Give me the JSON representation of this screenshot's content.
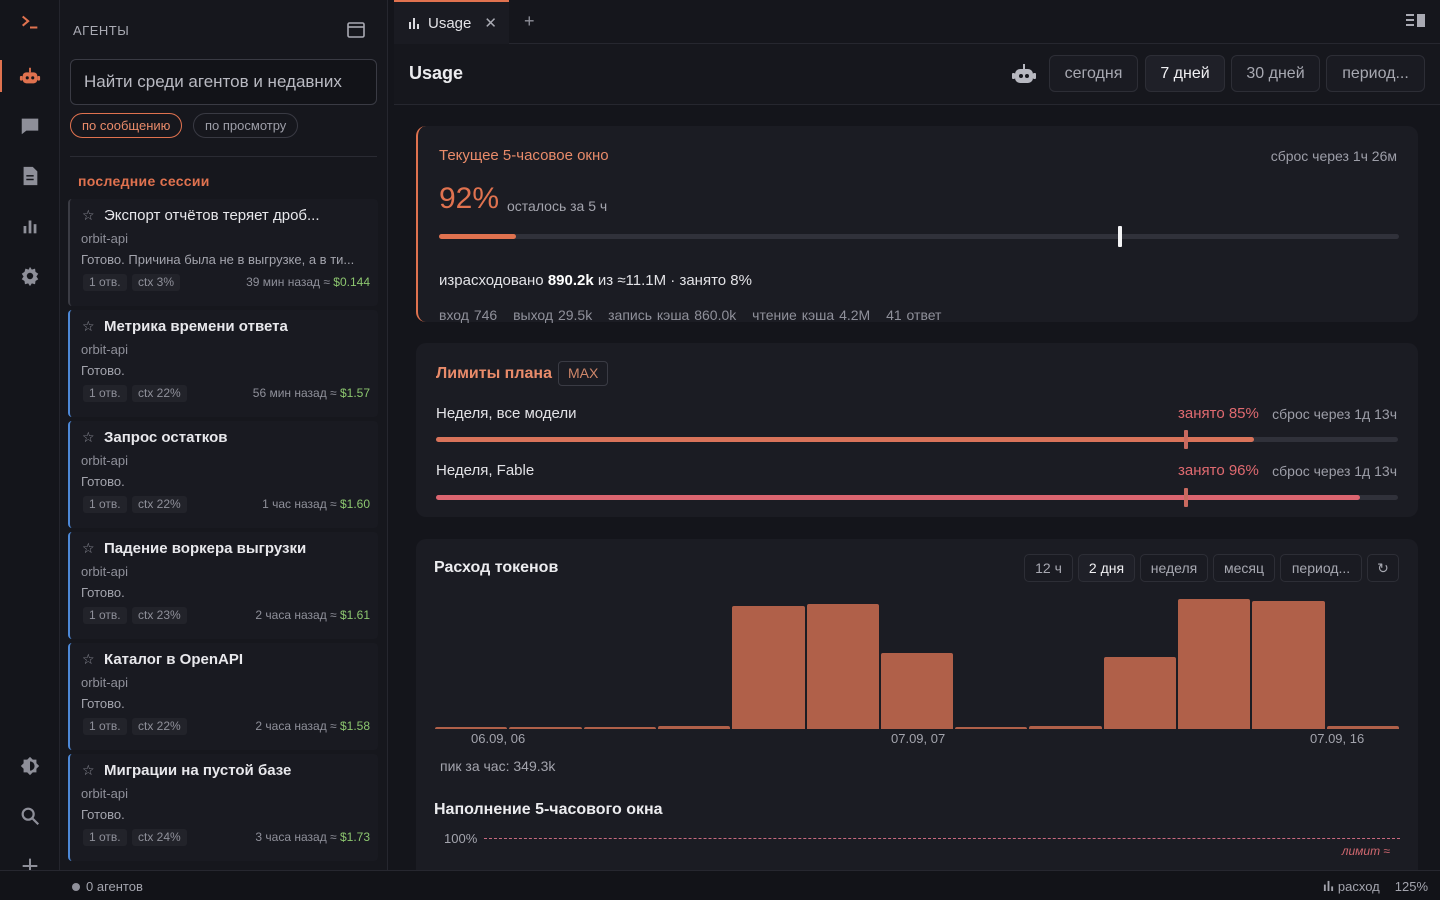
{
  "colors": {
    "accent": "#e0724f",
    "danger": "#e06a70",
    "cost": "#8cc66f",
    "bar": "#b06049",
    "recent": "#4d88d6"
  },
  "activity_bar": [
    "terminal-icon",
    "agents-icon",
    "chat-icon",
    "document-icon",
    "usage-chart-icon",
    "gear-icon",
    "theme-icon",
    "search-icon",
    "add-icon"
  ],
  "sidebar": {
    "title": "АГЕНТЫ",
    "search_placeholder": "Найти среди агентов и недавних",
    "filters": [
      "по сообщению",
      "по просмотру"
    ],
    "section": "последние сессии",
    "sessions": [
      {
        "name": "Экспорт отчётов теряет дроб...",
        "project": "orbit-api",
        "preview": "Готово. Причина была не в выгрузке, а в ти...",
        "replies": "1 отв.",
        "ctx": "ctx 3%",
        "time": "39 мин назад ≈",
        "cost": "$0.144"
      },
      {
        "name": "Метрика времени ответа",
        "project": "orbit-api",
        "preview": "Готово.",
        "replies": "1 отв.",
        "ctx": "ctx 22%",
        "time": "56 мин назад ≈",
        "cost": "$1.57"
      },
      {
        "name": "Запрос остатков",
        "project": "orbit-api",
        "preview": "Готово.",
        "replies": "1 отв.",
        "ctx": "ctx 22%",
        "time": "1 час назад ≈",
        "cost": "$1.60"
      },
      {
        "name": "Падение воркера выгрузки",
        "project": "orbit-api",
        "preview": "Готово.",
        "replies": "1 отв.",
        "ctx": "ctx 23%",
        "time": "2 часа назад ≈",
        "cost": "$1.61"
      },
      {
        "name": "Каталог в OpenAPI",
        "project": "orbit-api",
        "preview": "Готово.",
        "replies": "1 отв.",
        "ctx": "ctx 22%",
        "time": "2 часа назад ≈",
        "cost": "$1.58"
      },
      {
        "name": "Миграции на пустой базе",
        "project": "orbit-api",
        "preview": "Готово.",
        "replies": "1 отв.",
        "ctx": "ctx 24%",
        "time": "3 часа назад ≈",
        "cost": "$1.73"
      }
    ]
  },
  "tabs": {
    "active": "Usage",
    "close": "✕",
    "add": "+"
  },
  "header": {
    "title": "Usage",
    "ranges": [
      "сегодня",
      "7 дней",
      "30 дней",
      "период..."
    ],
    "selected_range": "7 дней"
  },
  "window": {
    "title": "Текущее 5-часовое окно",
    "reset": "сброс через 1ч 26м",
    "percent": "92%",
    "percent_sub": "осталось за 5 ч",
    "used_fraction": 0.08,
    "used_prefix": "израсходовано",
    "used_value": "890.2k",
    "used_suffix": "из ≈11.1M · занято 8%",
    "stats": [
      "вход 746",
      "выход 29.5k",
      "запись кэша 860.0k",
      "чтение кэша 4.2M",
      "41 ответ"
    ]
  },
  "limits": {
    "title": "Лимиты плана",
    "badge": "MAX",
    "items": [
      {
        "name": "Неделя, все модели",
        "pct_label": "занято 85%",
        "reset": "сброс через 1д 13ч",
        "fraction": 0.85
      },
      {
        "name": "Неделя, Fable",
        "pct_label": "занято 96%",
        "reset": "сброс через 1д 13ч",
        "fraction": 0.96
      }
    ]
  },
  "tokens": {
    "title": "Расход токенов",
    "ranges": [
      "12 ч",
      "2 дня",
      "неделя",
      "месяц",
      "период..."
    ],
    "selected_range": "2 дня",
    "refresh": "↻",
    "peak": "пик за час: 349.3k",
    "fill_title": "Наполнение 5-часового окна",
    "fill_pct": "100%",
    "limit_label": "лимит ≈"
  },
  "chart_data": {
    "type": "bar",
    "title": "Расход токенов",
    "x_ticks": [
      "06.09, 06",
      "07.09, 07",
      "07.09, 16"
    ],
    "values": [
      0.003,
      0.003,
      0.003,
      0.008,
      0.35,
      0.355,
      0.215,
      0.003,
      0.008,
      0.205,
      0.37,
      0.365,
      0.008
    ],
    "units": "M токенов",
    "ylim": [
      0,
      0.37
    ]
  },
  "statusbar": {
    "agents": "0 агентов",
    "usage": "расход",
    "zoom": "125%"
  }
}
